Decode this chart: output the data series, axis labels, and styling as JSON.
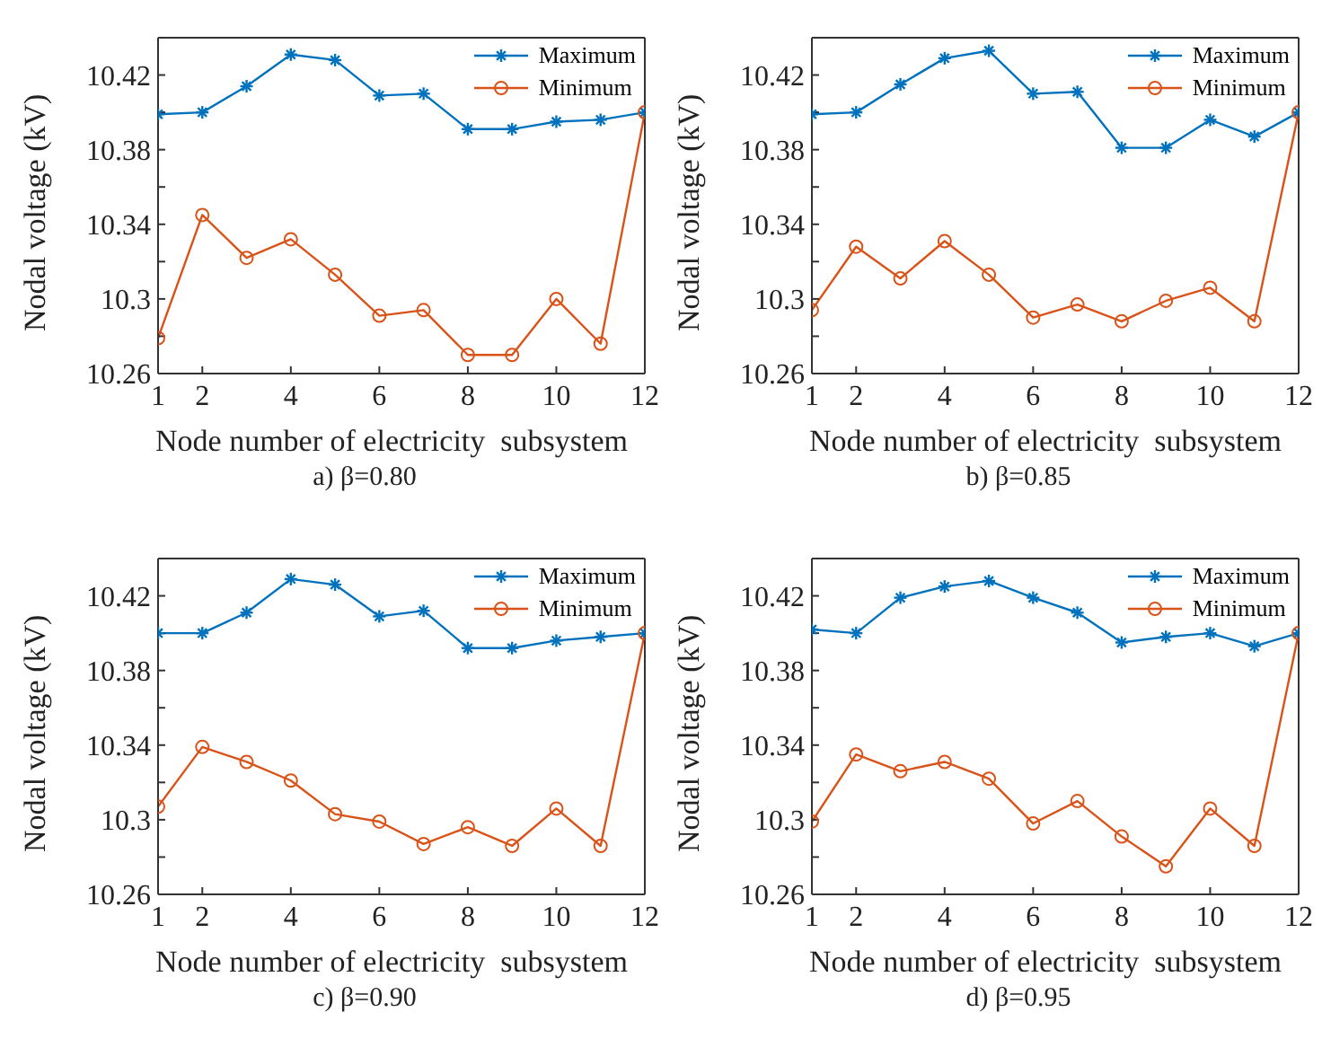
{
  "chart_data": [
    {
      "type": "line",
      "title": "a) β=0.80",
      "xlabel": "Node number of electricity  subsystem",
      "ylabel": "Nodal voltage (kV)",
      "x": [
        1,
        2,
        3,
        4,
        5,
        6,
        7,
        8,
        9,
        10,
        11,
        12
      ],
      "xlim": [
        1,
        12
      ],
      "xticks": [
        1,
        2,
        4,
        6,
        8,
        10,
        12
      ],
      "ylim": [
        10.26,
        10.44
      ],
      "yticks": [
        10.26,
        {
          "value": 10.28,
          "label": null
        },
        10.3,
        {
          "value": 10.32,
          "label": null
        },
        10.34,
        {
          "value": 10.36,
          "label": null
        },
        10.38,
        {
          "value": 10.4,
          "label": null
        },
        10.42
      ],
      "legend": "top right",
      "line_style": "solid",
      "series": [
        {
          "name": "Maximum",
          "color": "#0072bd",
          "marker": "cross",
          "values": [
            10.399,
            10.4,
            10.414,
            10.431,
            10.428,
            10.409,
            10.41,
            10.391,
            10.391,
            10.395,
            10.396,
            10.4
          ]
        },
        {
          "name": "Minimum",
          "color": "#d95319",
          "marker": "circle",
          "values": [
            10.279,
            10.345,
            10.322,
            10.332,
            10.313,
            10.291,
            10.294,
            10.27,
            10.27,
            10.3,
            10.276,
            10.4
          ]
        }
      ]
    },
    {
      "type": "line",
      "title": "b) β=0.85",
      "xlabel": "Node number of electricity  subsystem",
      "ylabel": "Nodal voltage (kV)",
      "x": [
        1,
        2,
        3,
        4,
        5,
        6,
        7,
        8,
        9,
        10,
        11,
        12
      ],
      "xlim": [
        1,
        12
      ],
      "xticks": [
        1,
        2,
        4,
        6,
        8,
        10,
        12
      ],
      "ylim": [
        10.26,
        10.44
      ],
      "yticks": [
        10.26,
        {
          "value": 10.28,
          "label": null
        },
        10.3,
        {
          "value": 10.32,
          "label": null
        },
        10.34,
        {
          "value": 10.36,
          "label": null
        },
        10.38,
        {
          "value": 10.4,
          "label": null
        },
        10.42
      ],
      "legend": "top right",
      "line_style": "solid",
      "series": [
        {
          "name": "Maximum",
          "color": "#0072bd",
          "marker": "cross",
          "values": [
            10.399,
            10.4,
            10.415,
            10.429,
            10.433,
            10.41,
            10.411,
            10.381,
            10.381,
            10.396,
            10.387,
            10.4
          ]
        },
        {
          "name": "Minimum",
          "color": "#d95319",
          "marker": "circle",
          "values": [
            10.294,
            10.328,
            10.311,
            10.331,
            10.313,
            10.29,
            10.297,
            10.288,
            10.299,
            10.306,
            10.288,
            10.4
          ]
        }
      ]
    },
    {
      "type": "line",
      "title": "c) β=0.90",
      "xlabel": "Node number of electricity  subsystem",
      "ylabel": "Nodal voltage (kV)",
      "x": [
        1,
        2,
        3,
        4,
        5,
        6,
        7,
        8,
        9,
        10,
        11,
        12
      ],
      "xlim": [
        1,
        12
      ],
      "xticks": [
        1,
        2,
        4,
        6,
        8,
        10,
        12
      ],
      "ylim": [
        10.26,
        10.44
      ],
      "yticks": [
        10.26,
        {
          "value": 10.28,
          "label": null
        },
        10.3,
        {
          "value": 10.32,
          "label": null
        },
        10.34,
        {
          "value": 10.36,
          "label": null
        },
        10.38,
        {
          "value": 10.4,
          "label": null
        },
        10.42
      ],
      "legend": "top right",
      "line_style": "solid",
      "series": [
        {
          "name": "Maximum",
          "color": "#0072bd",
          "marker": "cross",
          "values": [
            10.4,
            10.4,
            10.411,
            10.429,
            10.426,
            10.409,
            10.412,
            10.392,
            10.392,
            10.396,
            10.398,
            10.4
          ]
        },
        {
          "name": "Minimum",
          "color": "#d95319",
          "marker": "circle",
          "values": [
            10.307,
            10.339,
            10.331,
            10.321,
            10.303,
            10.299,
            10.287,
            10.296,
            10.286,
            10.306,
            10.286,
            10.4
          ]
        }
      ]
    },
    {
      "type": "line",
      "title": "d) β=0.95",
      "xlabel": "Node number of electricity  subsystem",
      "ylabel": "Nodal voltage (kV)",
      "x": [
        1,
        2,
        3,
        4,
        5,
        6,
        7,
        8,
        9,
        10,
        11,
        12
      ],
      "xlim": [
        1,
        12
      ],
      "xticks": [
        1,
        2,
        4,
        6,
        8,
        10,
        12
      ],
      "ylim": [
        10.26,
        10.44
      ],
      "yticks": [
        10.26,
        {
          "value": 10.28,
          "label": null
        },
        10.3,
        {
          "value": 10.32,
          "label": null
        },
        10.34,
        {
          "value": 10.36,
          "label": null
        },
        10.38,
        {
          "value": 10.4,
          "label": null
        },
        10.42
      ],
      "legend": "top right",
      "line_style": "solid",
      "series": [
        {
          "name": "Maximum",
          "color": "#0072bd",
          "marker": "cross",
          "values": [
            10.402,
            10.4,
            10.419,
            10.425,
            10.428,
            10.419,
            10.411,
            10.395,
            10.398,
            10.4,
            10.393,
            10.4
          ]
        },
        {
          "name": "Minimum",
          "color": "#d95319",
          "marker": "circle",
          "values": [
            10.299,
            10.335,
            10.326,
            10.331,
            10.322,
            10.298,
            10.31,
            10.291,
            10.275,
            10.306,
            10.286,
            10.4
          ]
        }
      ]
    }
  ]
}
